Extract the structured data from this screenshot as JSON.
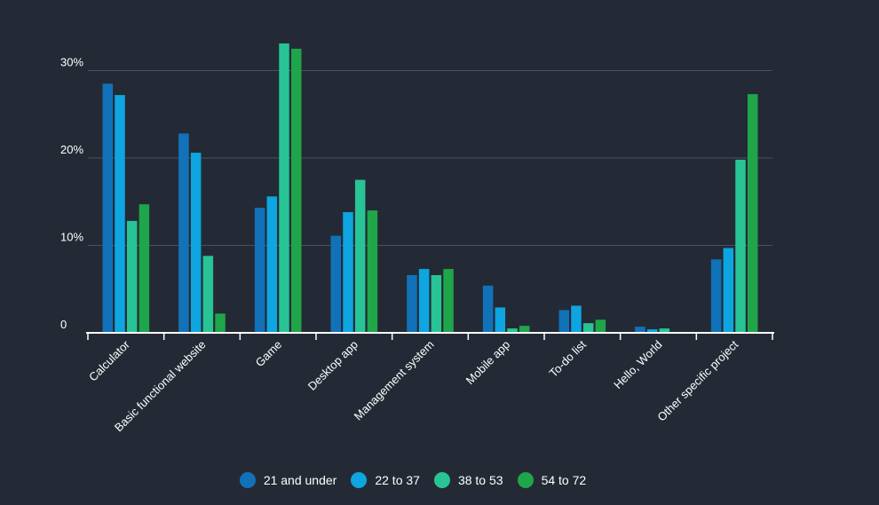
{
  "chart_data": {
    "type": "bar",
    "title": "",
    "xlabel": "",
    "ylabel": "",
    "ylim": [
      0,
      33
    ],
    "yticks": [
      {
        "value": 0,
        "label": "0"
      },
      {
        "value": 10,
        "label": "10%"
      },
      {
        "value": 20,
        "label": "20%"
      },
      {
        "value": 30,
        "label": "30%"
      }
    ],
    "categories": [
      "Calculator",
      "Basic functional website",
      "Game",
      "Desktop app",
      "Management system",
      "Mobile app",
      "To-do list",
      "Hello, World",
      "Other specific project"
    ],
    "series": [
      {
        "name": "21 and under",
        "color": "#1272b9",
        "values": [
          28.5,
          22.8,
          14.3,
          11.1,
          6.6,
          5.4,
          2.6,
          0.7,
          8.4
        ]
      },
      {
        "name": "22 to 37",
        "color": "#0ea5e1",
        "values": [
          27.2,
          20.6,
          15.6,
          13.8,
          7.3,
          2.9,
          3.1,
          0.4,
          9.7
        ]
      },
      {
        "name": "38 to 53",
        "color": "#28c495",
        "values": [
          12.8,
          8.8,
          33.1,
          17.5,
          6.6,
          0.5,
          1.1,
          0.5,
          19.8
        ]
      },
      {
        "name": "54 to 72",
        "color": "#1fa54a",
        "values": [
          14.7,
          2.2,
          32.5,
          14.0,
          7.3,
          0.8,
          1.5,
          0.0,
          27.3
        ]
      }
    ],
    "legend_position": "bottom-center",
    "grid": true
  }
}
